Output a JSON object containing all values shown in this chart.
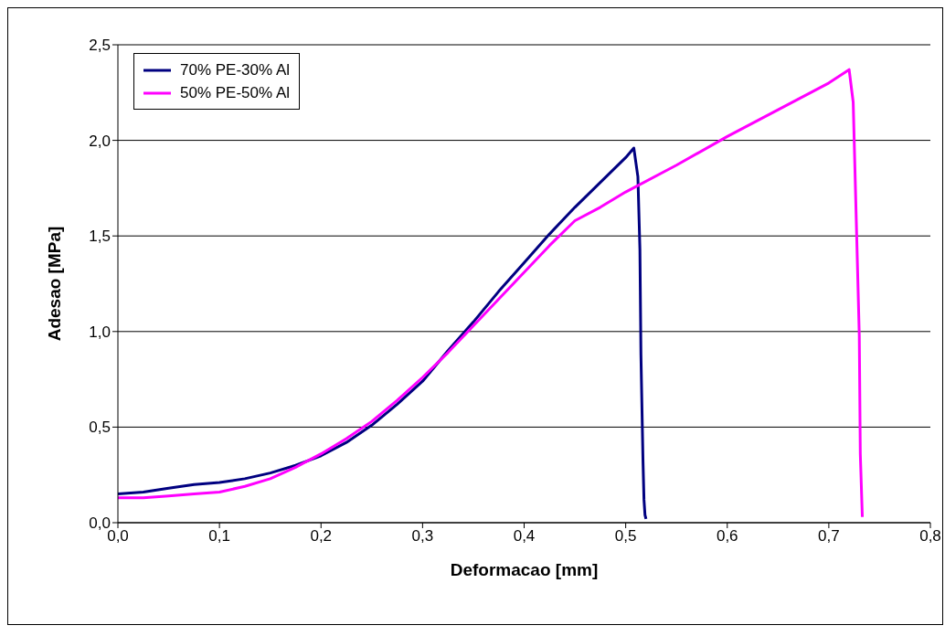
{
  "chart_data": {
    "type": "line",
    "xlabel": "Deformacao [mm]",
    "ylabel": "Adesao [MPa]",
    "xlim": [
      0,
      0.8
    ],
    "ylim": [
      0,
      2.5
    ],
    "xticks": [
      {
        "value": 0,
        "label": "0,0"
      },
      {
        "value": 0.1,
        "label": "0,1"
      },
      {
        "value": 0.2,
        "label": "0,2"
      },
      {
        "value": 0.3,
        "label": "0,3"
      },
      {
        "value": 0.4,
        "label": "0,4"
      },
      {
        "value": 0.5,
        "label": "0,5"
      },
      {
        "value": 0.6,
        "label": "0,6"
      },
      {
        "value": 0.7,
        "label": "0,7"
      },
      {
        "value": 0.8,
        "label": "0,8"
      }
    ],
    "yticks": [
      {
        "value": 0,
        "label": "0,0"
      },
      {
        "value": 0.5,
        "label": "0,5"
      },
      {
        "value": 1,
        "label": "1,0"
      },
      {
        "value": 1.5,
        "label": "1,5"
      },
      {
        "value": 2,
        "label": "2,0"
      },
      {
        "value": 2.5,
        "label": "2,5"
      }
    ],
    "grid": "y",
    "legend": "top left",
    "marker": "none",
    "line_style": "solid",
    "series": [
      {
        "name": "70% PE-30% Al",
        "color": "#000080",
        "x": [
          0,
          0.025,
          0.05,
          0.075,
          0.1,
          0.125,
          0.15,
          0.175,
          0.2,
          0.225,
          0.25,
          0.275,
          0.3,
          0.325,
          0.35,
          0.375,
          0.4,
          0.425,
          0.45,
          0.475,
          0.5,
          0.508,
          0.512,
          0.514,
          0.515,
          0.517,
          0.518,
          0.519,
          0.52
        ],
        "values": [
          0.15,
          0.16,
          0.18,
          0.2,
          0.21,
          0.23,
          0.26,
          0.3,
          0.35,
          0.42,
          0.51,
          0.62,
          0.74,
          0.9,
          1.05,
          1.21,
          1.36,
          1.51,
          1.65,
          1.78,
          1.91,
          1.96,
          1.81,
          1.43,
          0.88,
          0.33,
          0.12,
          0.04,
          0.02
        ]
      },
      {
        "name": "50% PE-50% Al",
        "color": "#ff00ff",
        "x": [
          0,
          0.025,
          0.05,
          0.075,
          0.1,
          0.125,
          0.15,
          0.175,
          0.2,
          0.225,
          0.25,
          0.275,
          0.3,
          0.325,
          0.35,
          0.375,
          0.4,
          0.425,
          0.45,
          0.475,
          0.5,
          0.55,
          0.6,
          0.65,
          0.7,
          0.72,
          0.724,
          0.727,
          0.73,
          0.731,
          0.733
        ],
        "values": [
          0.13,
          0.13,
          0.14,
          0.15,
          0.16,
          0.19,
          0.23,
          0.29,
          0.36,
          0.44,
          0.53,
          0.64,
          0.76,
          0.89,
          1.03,
          1.17,
          1.31,
          1.45,
          1.58,
          1.65,
          1.73,
          1.87,
          2.02,
          2.16,
          2.3,
          2.37,
          2.2,
          1.59,
          0.98,
          0.36,
          0.03
        ]
      }
    ]
  }
}
